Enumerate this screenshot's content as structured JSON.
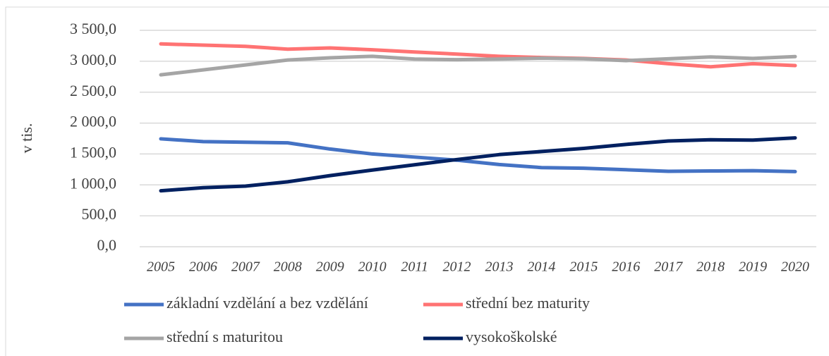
{
  "chart_data": {
    "type": "line",
    "y_label": "v tis.",
    "categories": [
      "2005",
      "2006",
      "2007",
      "2008",
      "2009",
      "2010",
      "2011",
      "2012",
      "2013",
      "2014",
      "2015",
      "2016",
      "2017",
      "2018",
      "2019",
      "2020"
    ],
    "series": [
      {
        "name": "základní vzdělání a bez vzdělání",
        "color": "#4472c4",
        "values": [
          1745,
          1700,
          1690,
          1680,
          1580,
          1500,
          1450,
          1400,
          1330,
          1280,
          1270,
          1245,
          1220,
          1225,
          1230,
          1215
        ]
      },
      {
        "name": "střední bez maturity",
        "color": "#ff7373",
        "values": [
          3280,
          3260,
          3240,
          3195,
          3215,
          3185,
          3150,
          3115,
          3080,
          3060,
          3045,
          3020,
          2960,
          2910,
          2960,
          2930
        ]
      },
      {
        "name": "střední s maturitou",
        "color": "#a5a5a5",
        "values": [
          2780,
          2860,
          2940,
          3020,
          3055,
          3080,
          3035,
          3025,
          3035,
          3050,
          3040,
          3010,
          3040,
          3070,
          3045,
          3075
        ]
      },
      {
        "name": "vysokoškolské",
        "color": "#002060",
        "values": [
          905,
          955,
          980,
          1050,
          1150,
          1240,
          1325,
          1410,
          1490,
          1540,
          1590,
          1655,
          1710,
          1730,
          1725,
          1760
        ]
      }
    ],
    "ylim": [
      0,
      3500
    ],
    "yticks": [
      {
        "value": 0,
        "label": "0,0"
      },
      {
        "value": 500,
        "label": "500,0"
      },
      {
        "value": 1000,
        "label": "1 000,0"
      },
      {
        "value": 1500,
        "label": "1 500,0"
      },
      {
        "value": 2000,
        "label": "2 000,0"
      },
      {
        "value": 2500,
        "label": "2 500,0"
      },
      {
        "value": 3000,
        "label": "3 000,0"
      },
      {
        "value": 3500,
        "label": "3 500,0"
      }
    ],
    "grid": true
  }
}
